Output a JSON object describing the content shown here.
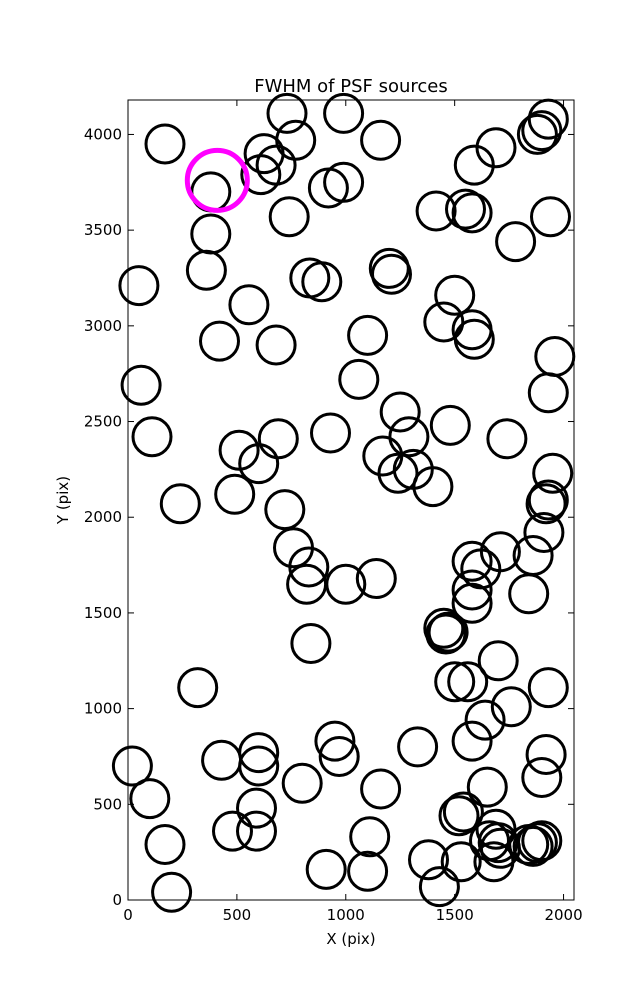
{
  "chart_data": {
    "type": "scatter",
    "title": "FWHM of PSF sources",
    "xlabel": "X (pix)",
    "ylabel": "Y (pix)",
    "xlim": [
      0,
      2048
    ],
    "ylim": [
      0,
      4180
    ],
    "xticks": [
      0,
      500,
      1000,
      1500,
      2000
    ],
    "yticks": [
      0,
      500,
      1000,
      1500,
      2000,
      2500,
      3000,
      3500,
      4000
    ],
    "grid": false,
    "marker": "open-circle",
    "series": [
      {
        "color": "#000000",
        "points": [
          [
            170,
            3950
          ],
          [
            380,
            3700
          ],
          [
            610,
            3790
          ],
          [
            625,
            3900
          ],
          [
            680,
            3840
          ],
          [
            730,
            4110
          ],
          [
            770,
            3970
          ],
          [
            990,
            4110
          ],
          [
            920,
            3720
          ],
          [
            990,
            3750
          ],
          [
            1160,
            3970
          ],
          [
            740,
            3570
          ],
          [
            380,
            3480
          ],
          [
            360,
            3290
          ],
          [
            50,
            3210
          ],
          [
            555,
            3110
          ],
          [
            835,
            3250
          ],
          [
            890,
            3230
          ],
          [
            1200,
            3300
          ],
          [
            1210,
            3270
          ],
          [
            1415,
            3600
          ],
          [
            1550,
            3610
          ],
          [
            1580,
            3590
          ],
          [
            1590,
            3840
          ],
          [
            1690,
            3930
          ],
          [
            1780,
            3440
          ],
          [
            1880,
            4000
          ],
          [
            1900,
            4020
          ],
          [
            1930,
            4080
          ],
          [
            1940,
            3570
          ],
          [
            420,
            2920
          ],
          [
            680,
            2900
          ],
          [
            1100,
            2950
          ],
          [
            1060,
            2720
          ],
          [
            1500,
            3160
          ],
          [
            1450,
            3020
          ],
          [
            1580,
            2980
          ],
          [
            1590,
            2930
          ],
          [
            1930,
            2650
          ],
          [
            1960,
            2840
          ],
          [
            60,
            2690
          ],
          [
            110,
            2420
          ],
          [
            510,
            2350
          ],
          [
            600,
            2280
          ],
          [
            690,
            2410
          ],
          [
            930,
            2440
          ],
          [
            1250,
            2550
          ],
          [
            1290,
            2420
          ],
          [
            1480,
            2480
          ],
          [
            1740,
            2410
          ],
          [
            1170,
            2320
          ],
          [
            1240,
            2230
          ],
          [
            1310,
            2250
          ],
          [
            1400,
            2160
          ],
          [
            1950,
            2230
          ],
          [
            240,
            2070
          ],
          [
            490,
            2120
          ],
          [
            720,
            2040
          ],
          [
            1920,
            2070
          ],
          [
            1930,
            2090
          ],
          [
            760,
            1840
          ],
          [
            830,
            1740
          ],
          [
            820,
            1650
          ],
          [
            1000,
            1650
          ],
          [
            1140,
            1680
          ],
          [
            1580,
            1770
          ],
          [
            1620,
            1730
          ],
          [
            1710,
            1820
          ],
          [
            1860,
            1800
          ],
          [
            1910,
            1920
          ],
          [
            1580,
            1620
          ],
          [
            1580,
            1550
          ],
          [
            1840,
            1600
          ],
          [
            840,
            1340
          ],
          [
            1450,
            1420
          ],
          [
            1460,
            1390
          ],
          [
            1470,
            1400
          ],
          [
            1700,
            1250
          ],
          [
            1500,
            1140
          ],
          [
            1560,
            1140
          ],
          [
            1640,
            940
          ],
          [
            1760,
            1010
          ],
          [
            1930,
            1110
          ],
          [
            320,
            1110
          ],
          [
            430,
            730
          ],
          [
            600,
            770
          ],
          [
            600,
            700
          ],
          [
            800,
            610
          ],
          [
            950,
            830
          ],
          [
            970,
            750
          ],
          [
            20,
            700
          ],
          [
            100,
            530
          ],
          [
            170,
            290
          ],
          [
            200,
            40
          ],
          [
            480,
            360
          ],
          [
            590,
            360
          ],
          [
            590,
            480
          ],
          [
            910,
            160
          ],
          [
            1110,
            330
          ],
          [
            1100,
            150
          ],
          [
            1160,
            580
          ],
          [
            1330,
            800
          ],
          [
            1380,
            210
          ],
          [
            1430,
            70
          ],
          [
            1520,
            440
          ],
          [
            1530,
            200
          ],
          [
            1650,
            590
          ],
          [
            1660,
            310
          ],
          [
            1680,
            200
          ],
          [
            1690,
            370
          ],
          [
            1700,
            300
          ],
          [
            1710,
            270
          ],
          [
            1840,
            290
          ],
          [
            1860,
            280
          ],
          [
            1880,
            300
          ],
          [
            1900,
            310
          ],
          [
            1900,
            640
          ],
          [
            1920,
            760
          ],
          [
            1540,
            460
          ],
          [
            1580,
            830
          ]
        ]
      },
      {
        "color": "#ff00ff",
        "points": [
          [
            410,
            3760
          ]
        ]
      }
    ]
  }
}
